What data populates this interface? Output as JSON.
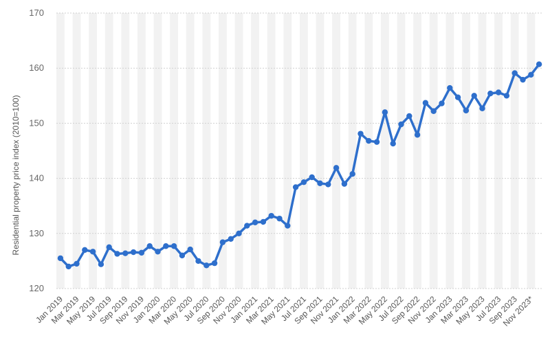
{
  "chart_data": {
    "type": "line",
    "title": "",
    "xlabel": "",
    "ylabel": "Residential property price index (2010=100)",
    "ylim": [
      120,
      170
    ],
    "yticks": [
      "120",
      "130",
      "140",
      "150",
      "160",
      "170"
    ],
    "grid": true,
    "legend": "none",
    "colors": {
      "line": "#2e6fcc",
      "band": "#f2f2f2",
      "grid": "#cfcfcf",
      "text": "#666666"
    },
    "x_tick_labels": [
      "Jan 2019",
      "Mar 2019",
      "May 2019",
      "Jul 2019",
      "Sep 2019",
      "Nov 2019",
      "Jan 2020",
      "Mar 2020",
      "May 2020",
      "Jul 2020",
      "Sep 2020",
      "Nov 2020",
      "Jan 2021",
      "Mar 2021",
      "May 2021",
      "Jul 2021",
      "Sep 2021",
      "Nov 2021",
      "Jan 2022",
      "Mar 2022",
      "May 2022",
      "Jul 2022",
      "Sep 2022",
      "Nov 2022",
      "Jan 2023",
      "Mar 2023",
      "May 2023",
      "Jul 2023",
      "Sep 2023",
      "Nov 2023*"
    ],
    "x": [
      "Jan 2019",
      "Feb 2019",
      "Mar 2019",
      "Apr 2019",
      "May 2019",
      "Jun 2019",
      "Jul 2019",
      "Aug 2019",
      "Sep 2019",
      "Oct 2019",
      "Nov 2019",
      "Dec 2019",
      "Jan 2020",
      "Feb 2020",
      "Mar 2020",
      "Apr 2020",
      "May 2020",
      "Jun 2020",
      "Jul 2020",
      "Aug 2020",
      "Sep 2020",
      "Oct 2020",
      "Nov 2020",
      "Dec 2020",
      "Jan 2021",
      "Feb 2021",
      "Mar 2021",
      "Apr 2021",
      "May 2021",
      "Jun 2021",
      "Jul 2021",
      "Aug 2021",
      "Sep 2021",
      "Oct 2021",
      "Nov 2021",
      "Dec 2021",
      "Jan 2022",
      "Feb 2022",
      "Mar 2022",
      "Apr 2022",
      "May 2022",
      "Jun 2022",
      "Jul 2022",
      "Aug 2022",
      "Sep 2022",
      "Oct 2022",
      "Nov 2022",
      "Dec 2022",
      "Jan 2023",
      "Feb 2023",
      "Mar 2023",
      "Apr 2023",
      "May 2023",
      "Jun 2023",
      "Jul 2023",
      "Aug 2023",
      "Sep 2023",
      "Oct 2023",
      "Nov 2023",
      "Dec 2023"
    ],
    "series": [
      {
        "values": [
          125.5,
          124.0,
          124.5,
          127.0,
          126.7,
          124.4,
          127.5,
          126.3,
          126.4,
          126.6,
          126.5,
          127.7,
          126.7,
          127.7,
          127.7,
          126.0,
          127.1,
          125.0,
          124.2,
          124.6,
          128.4,
          129.0,
          130.0,
          131.4,
          132.0,
          132.1,
          133.2,
          132.7,
          131.4,
          138.4,
          139.3,
          140.2,
          139.1,
          138.9,
          141.9,
          139.0,
          140.8,
          148.1,
          146.8,
          146.6,
          152.0,
          146.3,
          149.8,
          151.3,
          147.9,
          153.7,
          152.2,
          153.6,
          156.4,
          154.7,
          152.3,
          155.0,
          152.7,
          155.4,
          155.6,
          155.0,
          159.1,
          157.9,
          158.8,
          160.7
        ]
      }
    ]
  }
}
